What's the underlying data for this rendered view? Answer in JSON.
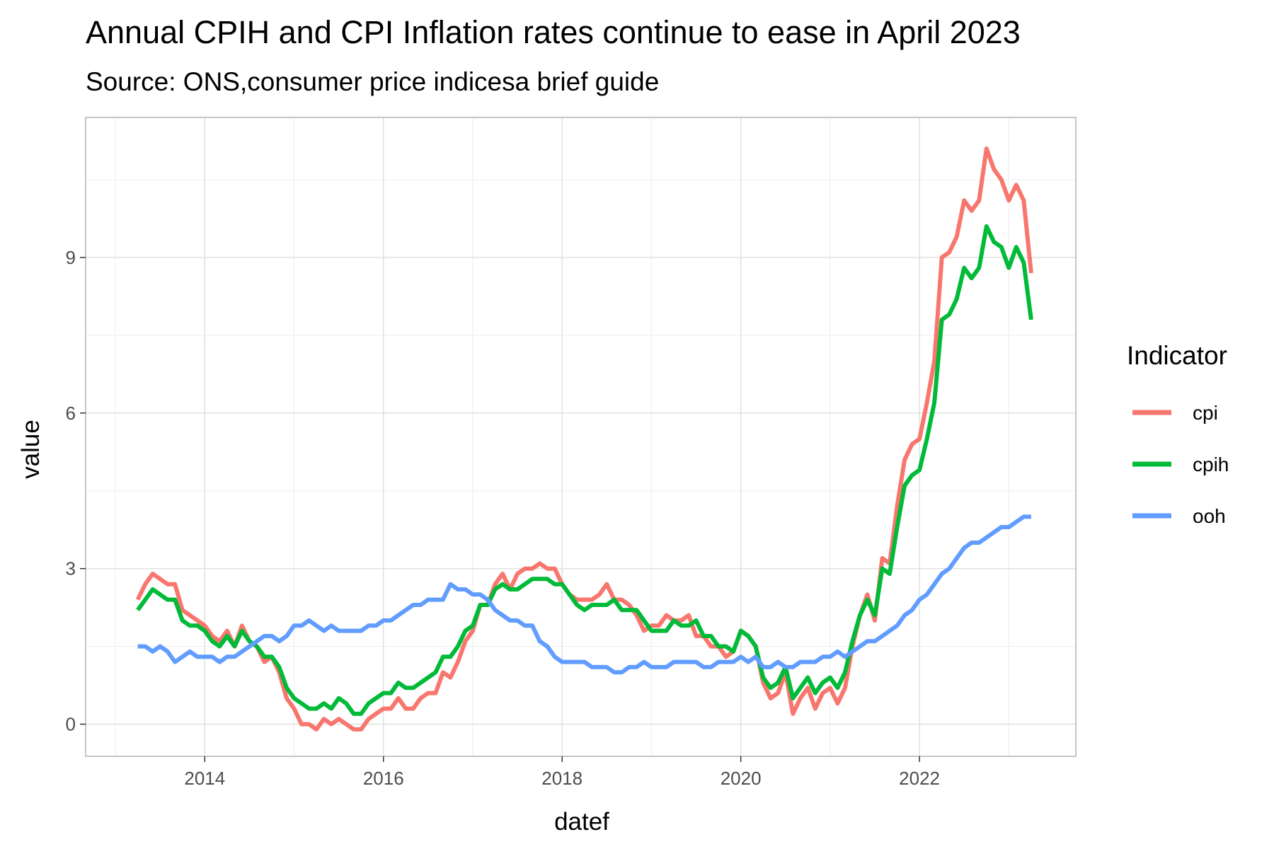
{
  "chart_data": {
    "type": "line",
    "title": "Annual CPIH and CPI Inflation rates continue to ease in April 2023",
    "subtitle": "Source: ONS,consumer price indicesa brief guide",
    "xlabel": "datef",
    "ylabel": "value",
    "x_ticks": [
      "2014",
      "2016",
      "2018",
      "2020",
      "2022"
    ],
    "y_ticks": [
      "0",
      "3",
      "6",
      "9"
    ],
    "xlim": [
      "2012-09",
      "2023-10"
    ],
    "ylim": [
      -0.62,
      11.7
    ],
    "grid": true,
    "legend": {
      "title": "Indicator",
      "position": "right"
    },
    "x_start": "2013-04",
    "series": [
      {
        "name": "cpi",
        "color": "#F8766D",
        "values": [
          2.4,
          2.7,
          2.9,
          2.8,
          2.7,
          2.7,
          2.2,
          2.1,
          2.0,
          1.9,
          1.7,
          1.6,
          1.8,
          1.5,
          1.9,
          1.6,
          1.5,
          1.2,
          1.3,
          1.0,
          0.5,
          0.3,
          0.0,
          0.0,
          -0.1,
          0.1,
          0.0,
          0.1,
          0.0,
          -0.1,
          -0.1,
          0.1,
          0.2,
          0.3,
          0.3,
          0.5,
          0.3,
          0.3,
          0.5,
          0.6,
          0.6,
          1.0,
          0.9,
          1.2,
          1.6,
          1.8,
          2.3,
          2.3,
          2.7,
          2.9,
          2.6,
          2.9,
          3.0,
          3.0,
          3.1,
          3.0,
          3.0,
          2.7,
          2.5,
          2.4,
          2.4,
          2.4,
          2.5,
          2.7,
          2.4,
          2.4,
          2.3,
          2.1,
          1.8,
          1.9,
          1.9,
          2.1,
          2.0,
          2.0,
          2.1,
          1.7,
          1.7,
          1.5,
          1.5,
          1.3,
          1.4,
          1.8,
          1.7,
          1.5,
          0.8,
          0.5,
          0.6,
          1.0,
          0.2,
          0.5,
          0.7,
          0.3,
          0.6,
          0.7,
          0.4,
          0.7,
          1.5,
          2.1,
          2.5,
          2.0,
          3.2,
          3.1,
          4.2,
          5.1,
          5.4,
          5.5,
          6.2,
          7.0,
          9.0,
          9.1,
          9.4,
          10.1,
          9.9,
          10.1,
          11.1,
          10.7,
          10.5,
          10.1,
          10.4,
          10.1,
          8.7
        ]
      },
      {
        "name": "cpih",
        "color": "#00BA38",
        "values": [
          2.2,
          2.4,
          2.6,
          2.5,
          2.4,
          2.4,
          2.0,
          1.9,
          1.9,
          1.8,
          1.6,
          1.5,
          1.7,
          1.5,
          1.8,
          1.6,
          1.5,
          1.3,
          1.3,
          1.1,
          0.7,
          0.5,
          0.4,
          0.3,
          0.3,
          0.4,
          0.3,
          0.5,
          0.4,
          0.2,
          0.2,
          0.4,
          0.5,
          0.6,
          0.6,
          0.8,
          0.7,
          0.7,
          0.8,
          0.9,
          1.0,
          1.3,
          1.3,
          1.5,
          1.8,
          1.9,
          2.3,
          2.3,
          2.6,
          2.7,
          2.6,
          2.6,
          2.7,
          2.8,
          2.8,
          2.8,
          2.7,
          2.7,
          2.5,
          2.3,
          2.2,
          2.3,
          2.3,
          2.3,
          2.4,
          2.2,
          2.2,
          2.2,
          2.0,
          1.8,
          1.8,
          1.8,
          2.0,
          1.9,
          1.9,
          2.0,
          1.7,
          1.7,
          1.5,
          1.5,
          1.4,
          1.8,
          1.7,
          1.5,
          0.9,
          0.7,
          0.8,
          1.1,
          0.5,
          0.7,
          0.9,
          0.6,
          0.8,
          0.9,
          0.7,
          1.0,
          1.6,
          2.1,
          2.4,
          2.1,
          3.0,
          2.9,
          3.8,
          4.6,
          4.8,
          4.9,
          5.5,
          6.2,
          7.8,
          7.9,
          8.2,
          8.8,
          8.6,
          8.8,
          9.6,
          9.3,
          9.2,
          8.8,
          9.2,
          8.9,
          7.8
        ]
      },
      {
        "name": "ooh",
        "color": "#619CFF",
        "values": [
          1.5,
          1.5,
          1.4,
          1.5,
          1.4,
          1.2,
          1.3,
          1.4,
          1.3,
          1.3,
          1.3,
          1.2,
          1.3,
          1.3,
          1.4,
          1.5,
          1.6,
          1.7,
          1.7,
          1.6,
          1.7,
          1.9,
          1.9,
          2.0,
          1.9,
          1.8,
          1.9,
          1.8,
          1.8,
          1.8,
          1.8,
          1.9,
          1.9,
          2.0,
          2.0,
          2.1,
          2.2,
          2.3,
          2.3,
          2.4,
          2.4,
          2.4,
          2.7,
          2.6,
          2.6,
          2.5,
          2.5,
          2.4,
          2.2,
          2.1,
          2.0,
          2.0,
          1.9,
          1.9,
          1.6,
          1.5,
          1.3,
          1.2,
          1.2,
          1.2,
          1.2,
          1.1,
          1.1,
          1.1,
          1.0,
          1.0,
          1.1,
          1.1,
          1.2,
          1.1,
          1.1,
          1.1,
          1.2,
          1.2,
          1.2,
          1.2,
          1.1,
          1.1,
          1.2,
          1.2,
          1.2,
          1.3,
          1.2,
          1.3,
          1.1,
          1.1,
          1.2,
          1.1,
          1.1,
          1.2,
          1.2,
          1.2,
          1.3,
          1.3,
          1.4,
          1.3,
          1.4,
          1.5,
          1.6,
          1.6,
          1.7,
          1.8,
          1.9,
          2.1,
          2.2,
          2.4,
          2.5,
          2.7,
          2.9,
          3.0,
          3.2,
          3.4,
          3.5,
          3.5,
          3.6,
          3.7,
          3.8,
          3.8,
          3.9,
          4.0,
          4.0
        ]
      }
    ]
  }
}
